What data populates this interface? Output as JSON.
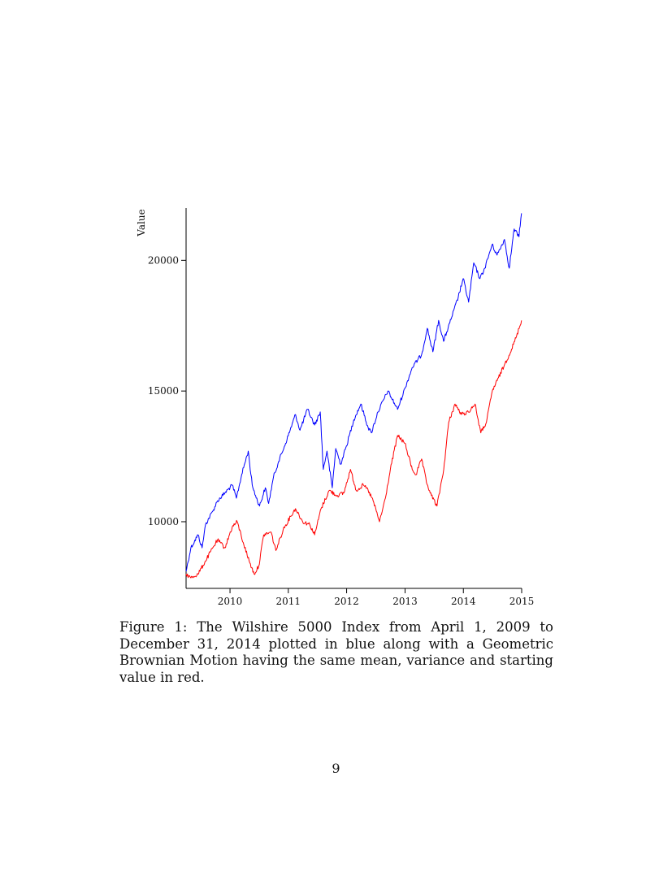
{
  "chart_data": {
    "type": "line",
    "ylabel": "Value",
    "xlabel": "",
    "xlim": [
      "2009-04-01",
      "2015-01-01"
    ],
    "ylim": [
      7450,
      22000
    ],
    "x_ticks": [
      2010,
      2011,
      2012,
      2013,
      2014,
      2015
    ],
    "y_ticks": [
      10000,
      15000,
      20000
    ],
    "grid": false,
    "series": [
      {
        "color": "#0000ff",
        "points": [
          [
            "2009-04-01",
            8100
          ],
          [
            "2009-05-01",
            9000
          ],
          [
            "2009-06-15",
            9500
          ],
          [
            "2009-07-10",
            9000
          ],
          [
            "2009-08-01",
            9900
          ],
          [
            "2009-09-15",
            10400
          ],
          [
            "2009-10-15",
            10800
          ],
          [
            "2009-11-30",
            11100
          ],
          [
            "2010-01-15",
            11400
          ],
          [
            "2010-02-10",
            10900
          ],
          [
            "2010-03-15",
            11800
          ],
          [
            "2010-04-25",
            12700
          ],
          [
            "2010-05-20",
            11400
          ],
          [
            "2010-06-10",
            11000
          ],
          [
            "2010-07-05",
            10600
          ],
          [
            "2010-08-10",
            11300
          ],
          [
            "2010-08-31",
            10700
          ],
          [
            "2010-09-30",
            11700
          ],
          [
            "2010-11-01",
            12300
          ],
          [
            "2010-12-15",
            13000
          ],
          [
            "2011-02-15",
            14100
          ],
          [
            "2011-03-15",
            13500
          ],
          [
            "2011-05-01",
            14300
          ],
          [
            "2011-06-15",
            13700
          ],
          [
            "2011-07-20",
            14200
          ],
          [
            "2011-08-08",
            12000
          ],
          [
            "2011-08-31",
            12700
          ],
          [
            "2011-10-03",
            11300
          ],
          [
            "2011-10-25",
            12800
          ],
          [
            "2011-11-25",
            12200
          ],
          [
            "2011-12-31",
            12900
          ],
          [
            "2012-02-15",
            13900
          ],
          [
            "2012-03-30",
            14500
          ],
          [
            "2012-05-15",
            13600
          ],
          [
            "2012-06-04",
            13400
          ],
          [
            "2012-07-15",
            14200
          ],
          [
            "2012-09-15",
            15000
          ],
          [
            "2012-11-15",
            14300
          ],
          [
            "2012-12-31",
            15100
          ],
          [
            "2013-02-15",
            15900
          ],
          [
            "2013-04-15",
            16400
          ],
          [
            "2013-05-20",
            17400
          ],
          [
            "2013-06-24",
            16500
          ],
          [
            "2013-07-30",
            17700
          ],
          [
            "2013-08-30",
            16900
          ],
          [
            "2013-10-08",
            17600
          ],
          [
            "2013-11-30",
            18600
          ],
          [
            "2013-12-31",
            19300
          ],
          [
            "2014-02-03",
            18400
          ],
          [
            "2014-03-07",
            19900
          ],
          [
            "2014-04-15",
            19300
          ],
          [
            "2014-05-15",
            19700
          ],
          [
            "2014-06-30",
            20600
          ],
          [
            "2014-07-31",
            20200
          ],
          [
            "2014-09-15",
            20800
          ],
          [
            "2014-10-15",
            19700
          ],
          [
            "2014-11-15",
            21200
          ],
          [
            "2014-12-15",
            20900
          ],
          [
            "2014-12-31",
            21800
          ]
        ]
      },
      {
        "color": "#ff0000",
        "points": [
          [
            "2009-04-01",
            8000
          ],
          [
            "2009-05-01",
            7850
          ],
          [
            "2009-06-15",
            8000
          ],
          [
            "2009-08-01",
            8500
          ],
          [
            "2009-09-15",
            9000
          ],
          [
            "2009-10-15",
            9300
          ],
          [
            "2009-11-30",
            9000
          ],
          [
            "2010-01-15",
            9800
          ],
          [
            "2010-02-15",
            10000
          ],
          [
            "2010-03-25",
            9200
          ],
          [
            "2010-05-01",
            8500
          ],
          [
            "2010-06-01",
            8000
          ],
          [
            "2010-06-30",
            8300
          ],
          [
            "2010-07-31",
            9500
          ],
          [
            "2010-09-15",
            9600
          ],
          [
            "2010-10-15",
            8900
          ],
          [
            "2010-11-30",
            9700
          ],
          [
            "2011-01-15",
            10200
          ],
          [
            "2011-02-15",
            10500
          ],
          [
            "2011-04-01",
            10000
          ],
          [
            "2011-05-15",
            9900
          ],
          [
            "2011-06-15",
            9500
          ],
          [
            "2011-07-25",
            10500
          ],
          [
            "2011-09-15",
            11200
          ],
          [
            "2011-11-01",
            11000
          ],
          [
            "2011-12-15",
            11100
          ],
          [
            "2012-01-25",
            12000
          ],
          [
            "2012-03-01",
            11200
          ],
          [
            "2012-04-15",
            11400
          ],
          [
            "2012-05-15",
            11200
          ],
          [
            "2012-06-15",
            10800
          ],
          [
            "2012-07-25",
            10000
          ],
          [
            "2012-08-31",
            10900
          ],
          [
            "2012-10-01",
            12000
          ],
          [
            "2012-11-15",
            13300
          ],
          [
            "2012-12-31",
            13000
          ],
          [
            "2013-02-15",
            12000
          ],
          [
            "2013-03-10",
            11800
          ],
          [
            "2013-04-15",
            12400
          ],
          [
            "2013-05-15",
            11500
          ],
          [
            "2013-06-15",
            11000
          ],
          [
            "2013-07-20",
            10600
          ],
          [
            "2013-08-31",
            12000
          ],
          [
            "2013-10-01",
            13800
          ],
          [
            "2013-11-10",
            14500
          ],
          [
            "2013-12-20",
            14100
          ],
          [
            "2014-02-01",
            14200
          ],
          [
            "2014-03-15",
            14500
          ],
          [
            "2014-04-20",
            13400
          ],
          [
            "2014-05-25",
            13800
          ],
          [
            "2014-07-01",
            15000
          ],
          [
            "2014-08-01",
            15400
          ],
          [
            "2014-09-15",
            16000
          ],
          [
            "2014-10-30",
            16600
          ],
          [
            "2014-11-30",
            17100
          ],
          [
            "2014-12-31",
            17700
          ]
        ]
      }
    ]
  },
  "caption": "Figure 1: The Wilshire 5000 Index from April 1, 2009 to December 31, 2014 plotted in blue along with a Geometric Brownian Motion having the same mean, variance and starting value in red.",
  "page_number": "9"
}
